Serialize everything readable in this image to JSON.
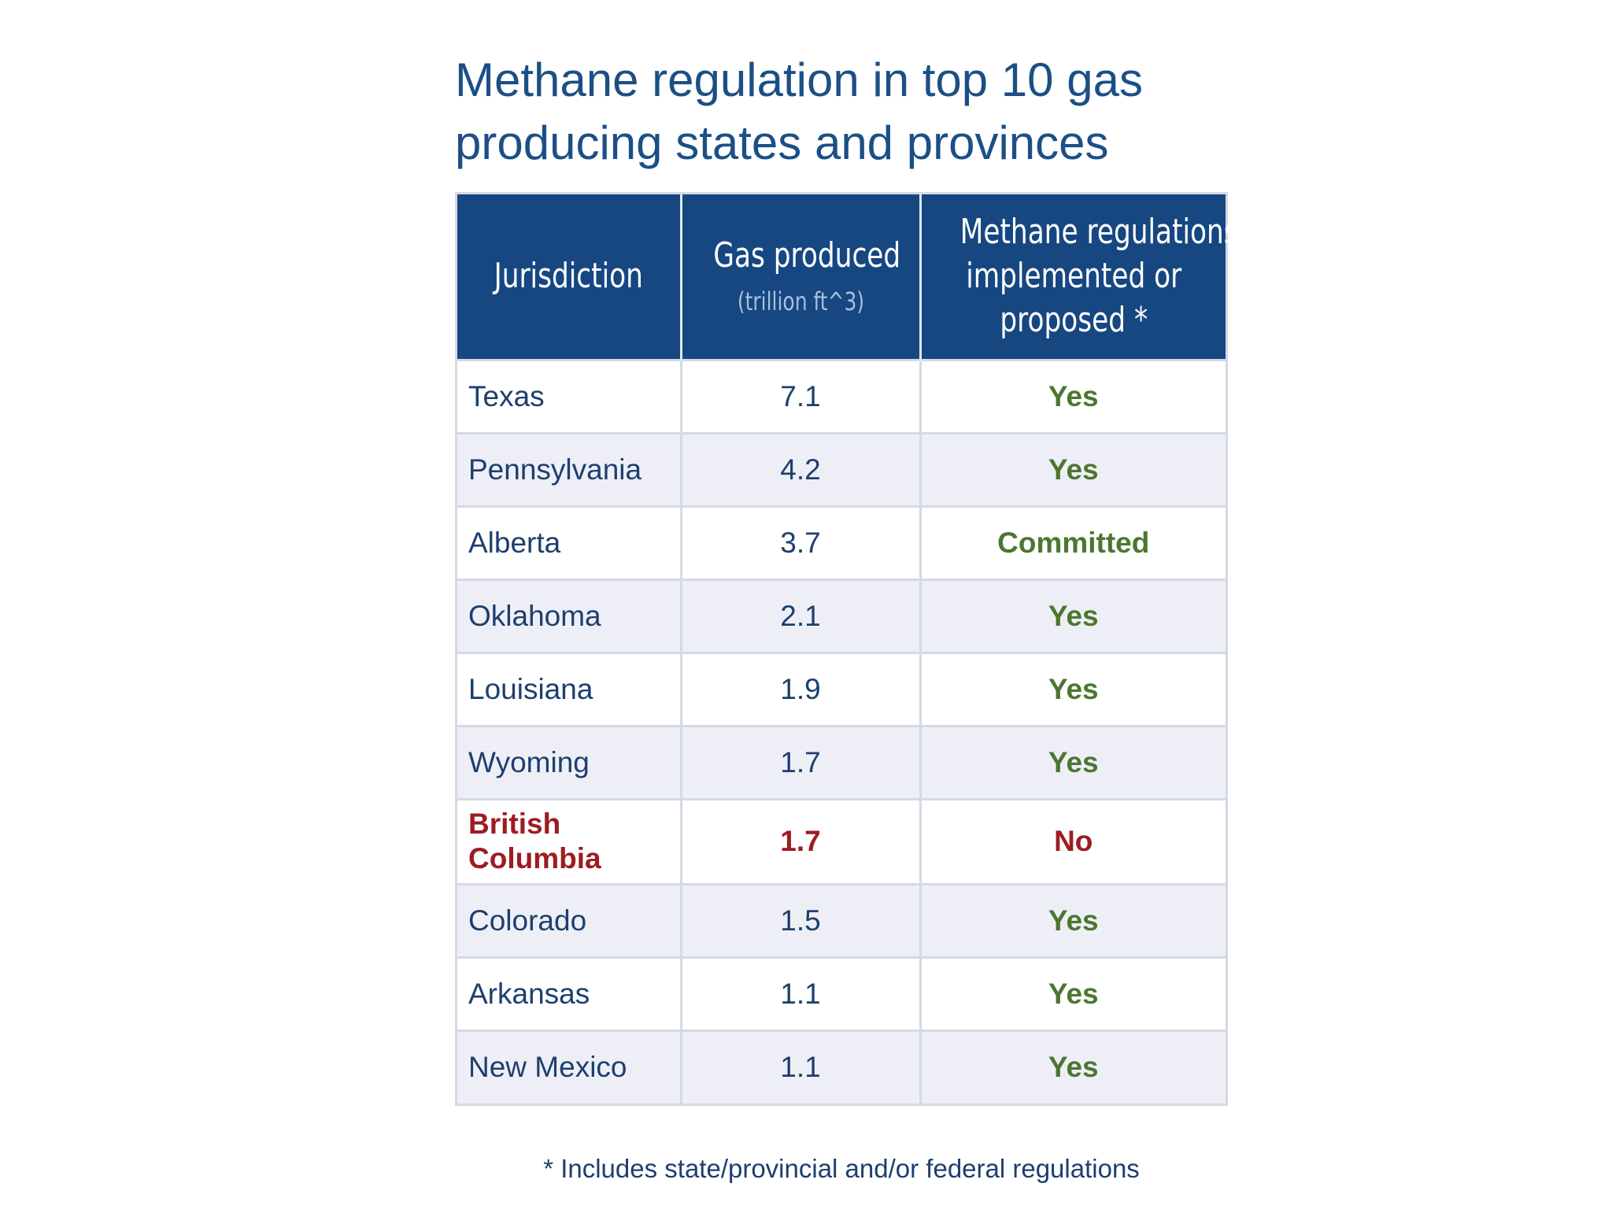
{
  "chart_data": {
    "type": "table",
    "title_line1": "Methane regulation in top 10 gas",
    "title_line2": "producing states and provinces",
    "columns": {
      "jurisdiction": "Jurisdiction",
      "gas": "Gas produced",
      "gas_unit": "(trillion ft^3)",
      "regulations_line1": "Methane regulations",
      "regulations_line2": "implemented or",
      "regulations_line3": "proposed *"
    },
    "rows": [
      {
        "jurisdiction": "Texas",
        "gas": "7.1",
        "regulations": "Yes"
      },
      {
        "jurisdiction": "Pennsylvania",
        "gas": "4.2",
        "regulations": "Yes"
      },
      {
        "jurisdiction": "Alberta",
        "gas": "3.7",
        "regulations": "Committed"
      },
      {
        "jurisdiction": "Oklahoma",
        "gas": "2.1",
        "regulations": "Yes"
      },
      {
        "jurisdiction": "Louisiana",
        "gas": "1.9",
        "regulations": "Yes"
      },
      {
        "jurisdiction": "Wyoming",
        "gas": "1.7",
        "regulations": "Yes"
      },
      {
        "jurisdiction_line1": "British",
        "jurisdiction_line2": "Columbia",
        "gas": "1.7",
        "regulations": "No"
      },
      {
        "jurisdiction": "Colorado",
        "gas": "1.5",
        "regulations": "Yes"
      },
      {
        "jurisdiction": "Arkansas",
        "gas": "1.1",
        "regulations": "Yes"
      },
      {
        "jurisdiction": "New Mexico",
        "gas": "1.1",
        "regulations": "Yes"
      }
    ],
    "footnote": "* Includes state/provincial and/or federal regulations"
  },
  "colors": {
    "title": "#1b4f86",
    "header_bg": "#164781",
    "text": "#1d3f6e",
    "yes": "#4b7730",
    "alert": "#9c1c22"
  }
}
